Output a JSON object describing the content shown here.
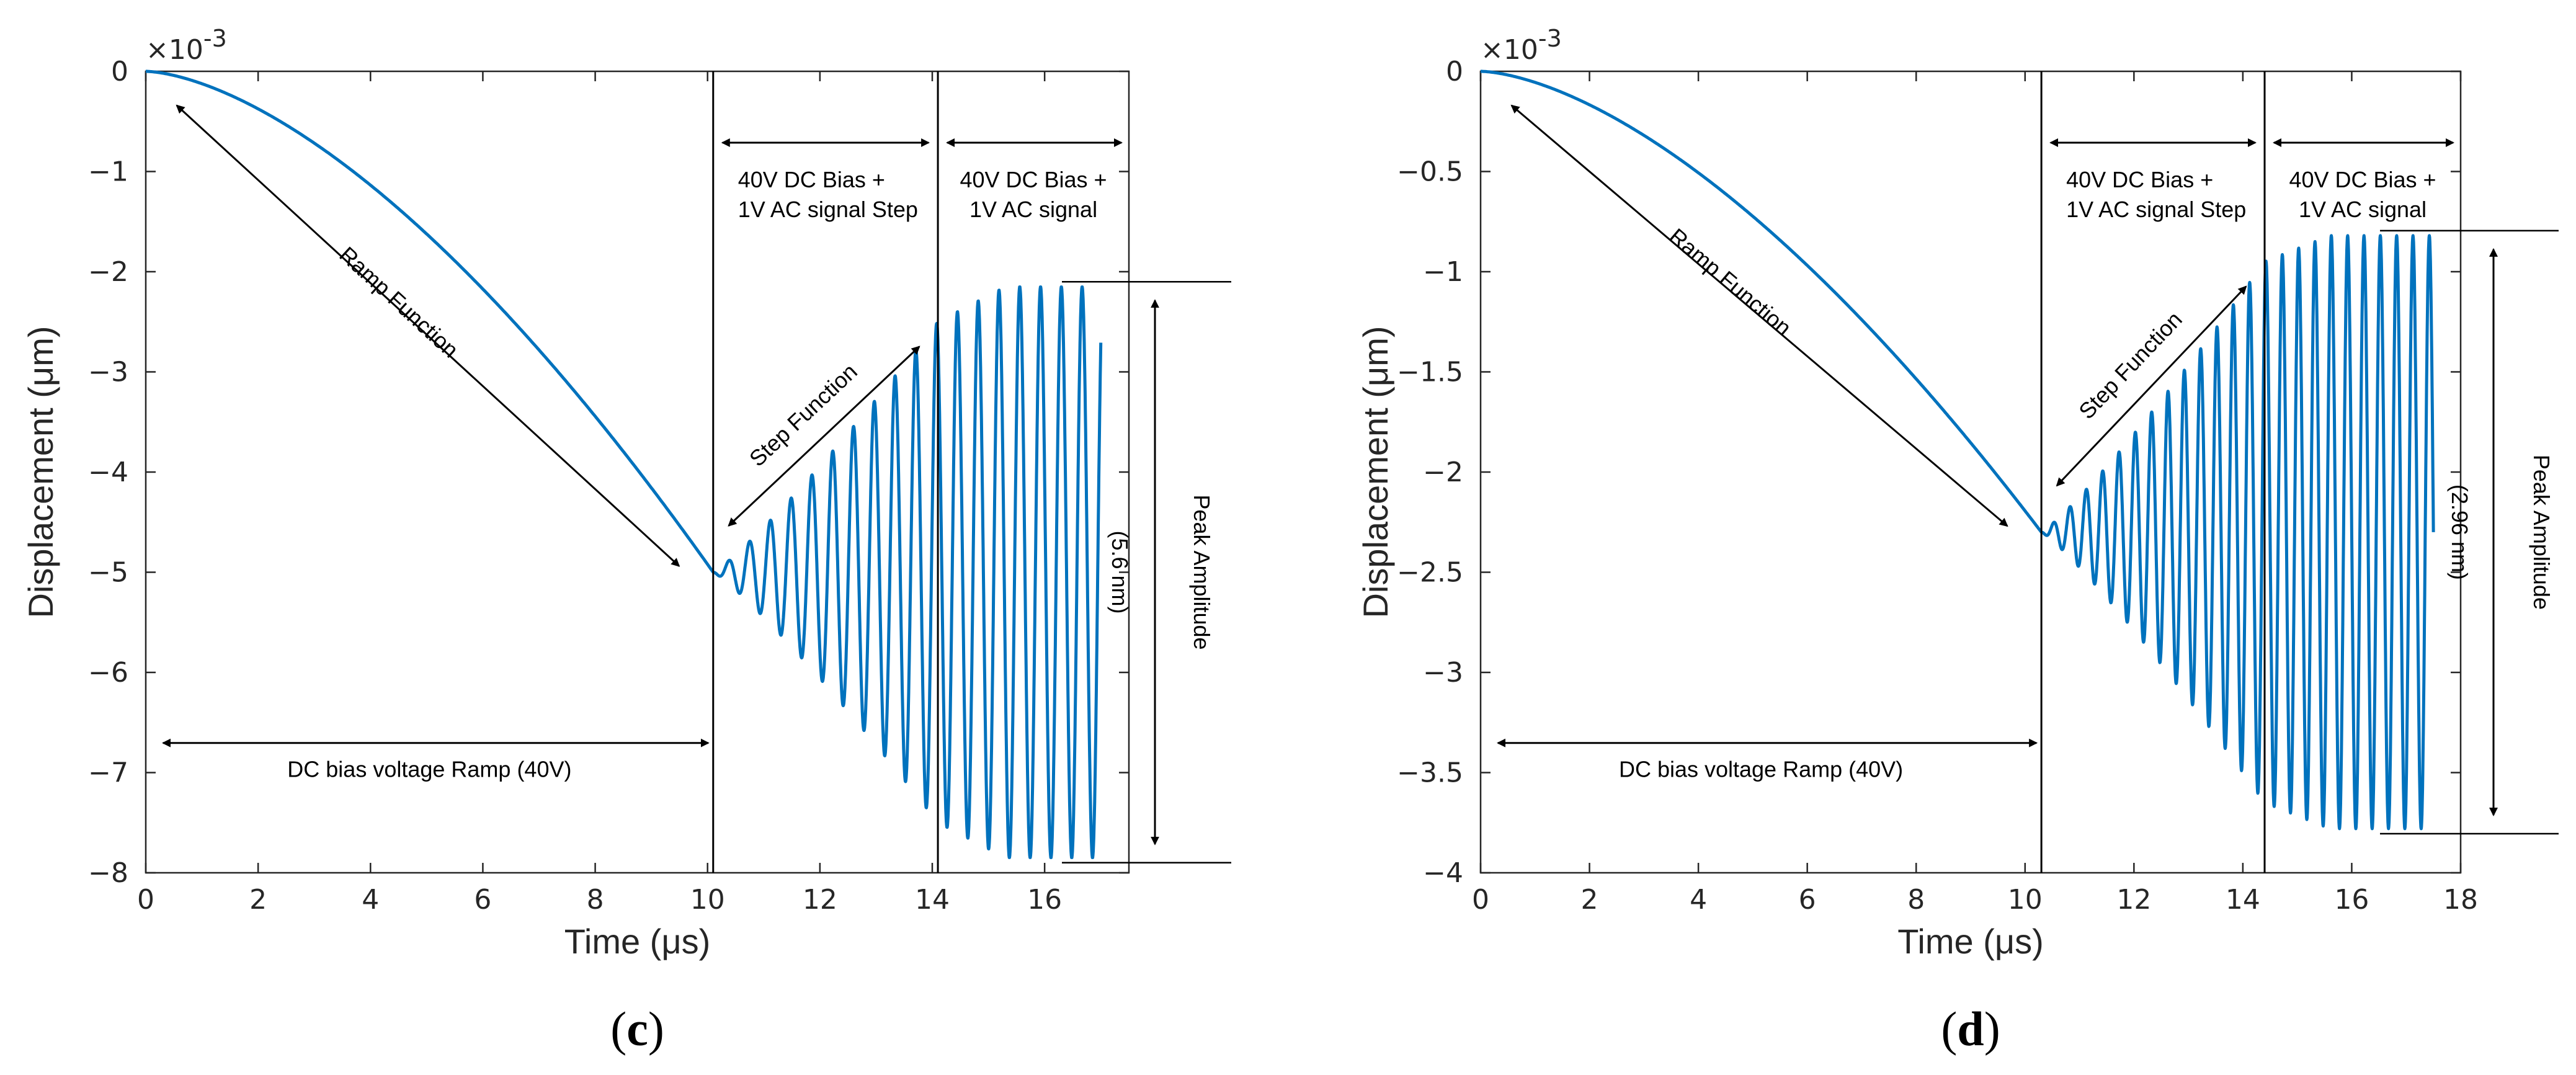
{
  "chart_data": [
    {
      "type": "line",
      "panel_label": "(c)",
      "panel_letter": "c",
      "xlabel": "Time (μs)",
      "ylabel": "Displacement (μm)",
      "exponent_label": "×10",
      "exponent_power": "-3",
      "xlim": [
        0,
        17.5
      ],
      "ylim": [
        -8,
        0
      ],
      "xticks": [
        0,
        2,
        4,
        6,
        8,
        10,
        12,
        14,
        16
      ],
      "yticks": [
        0,
        -1,
        -2,
        -3,
        -4,
        -5,
        -6,
        -7,
        -8
      ],
      "xtick_labels": [
        "0",
        "2",
        "4",
        "6",
        "8",
        "10",
        "12",
        "14",
        "16"
      ],
      "ytick_labels": [
        "0",
        "−1",
        "−2",
        "−3",
        "−4",
        "−5",
        "−6",
        "−7",
        "−8"
      ],
      "series": [
        {
          "name": "Displacement",
          "color": "#0072BD",
          "ramp": {
            "t_start": 0,
            "t_end": 10.1,
            "y_start": 0,
            "y_end": -5.0
          },
          "oscillation": {
            "t_start": 10.1,
            "t_end": 17.0,
            "center": -5.0,
            "period": 0.37,
            "step_end": 14.1,
            "amp_at_step_end": 2.5,
            "amp_final": 2.85
          }
        }
      ],
      "vertical_lines": [
        10.1,
        14.1
      ],
      "annotations": {
        "ramp_function": "Ramp Function",
        "step_function": "Step Function",
        "dc_ramp": "DC bias voltage Ramp (40V)",
        "step_region_line1": "40V DC Bias +",
        "step_region_line2": "1V AC signal Step",
        "ac_region_line1": "40V DC Bias +",
        "ac_region_line2": "1V AC signal",
        "peak_line1": "Peak Amplitude",
        "peak_line2": "(5.6 nm)"
      }
    },
    {
      "type": "line",
      "panel_label": "(d)",
      "panel_letter": "d",
      "xlabel": "Time (μs)",
      "ylabel": "Displacement (μm)",
      "exponent_label": "×10",
      "exponent_power": "-3",
      "xlim": [
        0,
        18
      ],
      "ylim": [
        -4,
        0
      ],
      "xticks": [
        0,
        2,
        4,
        6,
        8,
        10,
        12,
        14,
        16,
        18
      ],
      "yticks": [
        0,
        -0.5,
        -1,
        -1.5,
        -2,
        -2.5,
        -3,
        -3.5,
        -4
      ],
      "xtick_labels": [
        "0",
        "2",
        "4",
        "6",
        "8",
        "10",
        "12",
        "14",
        "16",
        "18"
      ],
      "ytick_labels": [
        "0",
        "−0.5",
        "−1",
        "−1.5",
        "−2",
        "−2.5",
        "−3",
        "−3.5",
        "−4"
      ],
      "series": [
        {
          "name": "Displacement",
          "color": "#0072BD",
          "ramp": {
            "t_start": 0,
            "t_end": 10.3,
            "y_start": 0,
            "y_end": -2.3
          },
          "oscillation": {
            "t_start": 10.3,
            "t_end": 17.5,
            "center": -2.3,
            "period": 0.3,
            "step_end": 14.4,
            "amp_at_step_end": 1.35,
            "amp_final": 1.48
          }
        }
      ],
      "vertical_lines": [
        10.3,
        14.4
      ],
      "annotations": {
        "ramp_function": "Ramp Function",
        "step_function": "Step Function",
        "dc_ramp": "DC bias voltage Ramp (40V)",
        "step_region_line1": "40V DC Bias +",
        "step_region_line2": "1V AC signal Step",
        "ac_region_line1": "40V DC Bias +",
        "ac_region_line2": "1V AC signal",
        "peak_line1": "Peak Amplitude",
        "peak_line2": "(2.96 nm)"
      }
    }
  ]
}
